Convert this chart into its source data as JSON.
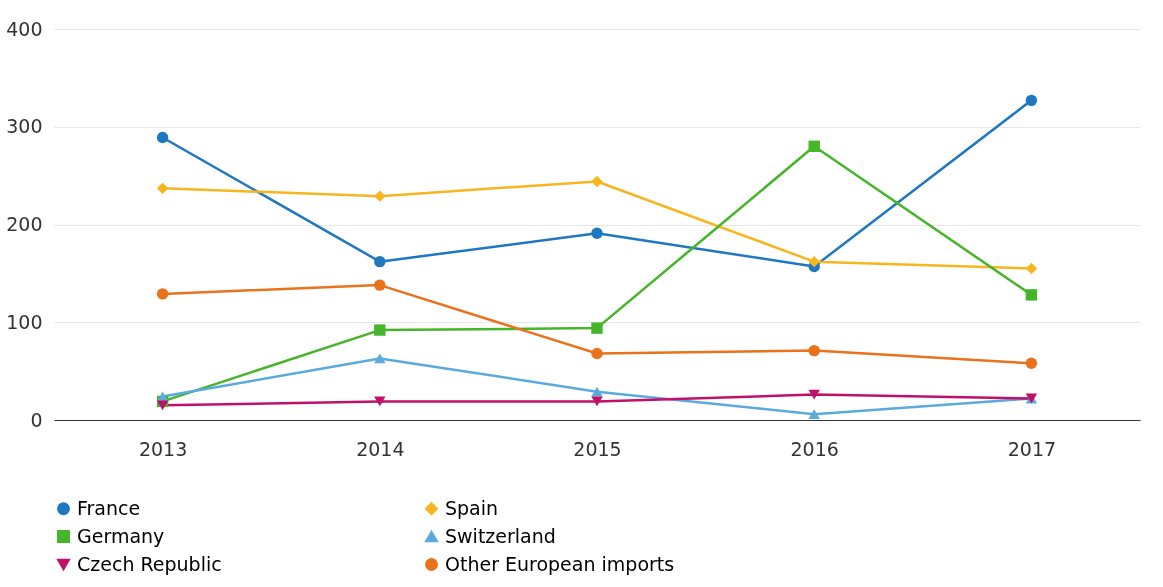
{
  "chart_data": {
    "type": "line",
    "categories": [
      "2013",
      "2014",
      "2015",
      "2016",
      "2017"
    ],
    "series": [
      {
        "name": "France",
        "color": "#1f77c0",
        "marker": "circle",
        "values": [
          289,
          162,
          191,
          157,
          327
        ]
      },
      {
        "name": "Spain",
        "color": "#f7b520",
        "marker": "diamond",
        "values": [
          237,
          229,
          244,
          162,
          155
        ]
      },
      {
        "name": "Germany",
        "color": "#45b52a",
        "marker": "square",
        "values": [
          19,
          92,
          94,
          280,
          128
        ]
      },
      {
        "name": "Switzerland",
        "color": "#5aaadc",
        "marker": "triangle",
        "values": [
          24,
          63,
          29,
          6,
          22
        ]
      },
      {
        "name": "Czech Republic",
        "color": "#c0106a",
        "marker": "triangle-down",
        "values": [
          15,
          19,
          19,
          26,
          22
        ]
      },
      {
        "name": "Other European imports",
        "color": "#e8731c",
        "marker": "circle",
        "values": [
          129,
          138,
          68,
          71,
          58
        ]
      }
    ],
    "ylim": [
      0,
      400
    ],
    "yticks": [
      0,
      100,
      200,
      300,
      400
    ],
    "grid": "y",
    "legend": "bottom"
  }
}
